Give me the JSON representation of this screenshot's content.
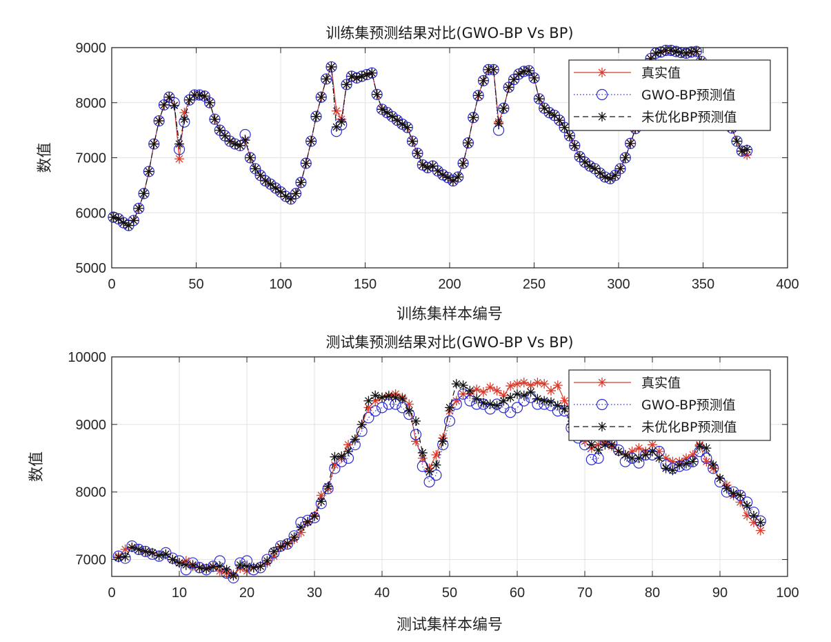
{
  "chart_data": [
    {
      "type": "line",
      "title": "训练集预测结果对比(GWO-BP Vs BP)",
      "xlabel": "训练集样本编号",
      "ylabel": "数值",
      "xlim": [
        0,
        400
      ],
      "ylim": [
        5000,
        9000
      ],
      "xticks": [
        0,
        50,
        100,
        150,
        200,
        250,
        300,
        350,
        400
      ],
      "yticks": [
        5000,
        6000,
        7000,
        8000,
        9000
      ],
      "grid": true,
      "legend_position": "top-right",
      "x": [
        1,
        4,
        7,
        10,
        13,
        16,
        19,
        22,
        25,
        28,
        31,
        34,
        37,
        40,
        43,
        46,
        49,
        52,
        55,
        58,
        61,
        64,
        67,
        70,
        73,
        76,
        79,
        82,
        85,
        88,
        91,
        94,
        97,
        100,
        103,
        106,
        109,
        112,
        115,
        118,
        121,
        124,
        127,
        130,
        133,
        136,
        139,
        142,
        145,
        148,
        151,
        154,
        157,
        160,
        163,
        166,
        169,
        172,
        175,
        178,
        181,
        184,
        187,
        190,
        193,
        196,
        199,
        202,
        205,
        208,
        211,
        214,
        217,
        220,
        223,
        226,
        229,
        232,
        235,
        238,
        241,
        244,
        247,
        250,
        253,
        256,
        259,
        262,
        265,
        268,
        271,
        274,
        277,
        280,
        283,
        286,
        289,
        292,
        295,
        298,
        301,
        304,
        307,
        310,
        313,
        316,
        319,
        322,
        325,
        328,
        331,
        334,
        337,
        340,
        343,
        346,
        349,
        352,
        355,
        358,
        361,
        364,
        367,
        370,
        373,
        376
      ],
      "series": [
        {
          "name": "真实值",
          "color": "#d93a2b",
          "line": "solid",
          "marker": "asterisk",
          "values": [
            5920,
            5890,
            5820,
            5770,
            5860,
            6080,
            6350,
            6750,
            7250,
            7670,
            7960,
            8100,
            7950,
            6980,
            7820,
            8050,
            8140,
            8140,
            8120,
            8000,
            7700,
            7500,
            7400,
            7300,
            7250,
            7220,
            7320,
            7000,
            6800,
            6680,
            6580,
            6520,
            6450,
            6380,
            6300,
            6250,
            6350,
            6550,
            6900,
            7300,
            7750,
            8100,
            8430,
            8650,
            7850,
            7700,
            8330,
            8480,
            8450,
            8480,
            8510,
            8540,
            8150,
            7880,
            7820,
            7750,
            7680,
            7610,
            7550,
            7300,
            7080,
            6870,
            6820,
            6850,
            6760,
            6690,
            6640,
            6580,
            6650,
            6900,
            7270,
            7730,
            8130,
            8400,
            8600,
            8600,
            7650,
            7900,
            8280,
            8420,
            8520,
            8570,
            8580,
            8450,
            8070,
            7900,
            7820,
            7770,
            7680,
            7550,
            7400,
            7220,
            7020,
            6920,
            6850,
            6800,
            6720,
            6650,
            6620,
            6680,
            6800,
            7000,
            7260,
            7530,
            7880,
            8400,
            8800,
            8900,
            8920,
            8950,
            8950,
            8930,
            8910,
            8900,
            8920,
            8930,
            8750,
            8580,
            8400,
            8160,
            7940,
            7760,
            7540,
            7300,
            7120,
            7050
          ]
        },
        {
          "name": "GWO-BP预测值",
          "color": "#2b2bd6",
          "line": "dotted",
          "marker": "circle",
          "values": [
            5920,
            5890,
            5820,
            5770,
            5860,
            6080,
            6350,
            6750,
            7250,
            7670,
            7960,
            8100,
            8000,
            7150,
            7650,
            8050,
            8140,
            8140,
            8120,
            8000,
            7700,
            7500,
            7400,
            7300,
            7250,
            7220,
            7420,
            7000,
            6800,
            6680,
            6580,
            6520,
            6450,
            6380,
            6300,
            6250,
            6350,
            6550,
            6900,
            7300,
            7750,
            8100,
            8430,
            8650,
            7480,
            7600,
            8330,
            8480,
            8450,
            8480,
            8510,
            8540,
            8150,
            7880,
            7820,
            7750,
            7680,
            7610,
            7550,
            7300,
            7080,
            6870,
            6820,
            6850,
            6760,
            6690,
            6640,
            6580,
            6650,
            6900,
            7270,
            7730,
            8130,
            8400,
            8600,
            8600,
            7500,
            7900,
            8280,
            8420,
            8520,
            8570,
            8580,
            8450,
            8070,
            7900,
            7820,
            7770,
            7680,
            7550,
            7400,
            7220,
            7020,
            6920,
            6850,
            6800,
            6720,
            6650,
            6620,
            6680,
            6800,
            7000,
            7260,
            7530,
            7880,
            8400,
            8800,
            8900,
            8920,
            8950,
            8950,
            8930,
            8910,
            8900,
            8920,
            8930,
            8750,
            8580,
            8400,
            8160,
            7940,
            7760,
            7540,
            7300,
            7120,
            7130
          ]
        },
        {
          "name": "未优化BP预测值",
          "color": "#111111",
          "line": "dashed",
          "marker": "asterisk",
          "values": [
            5920,
            5890,
            5820,
            5770,
            5860,
            6080,
            6350,
            6750,
            7250,
            7670,
            7960,
            8100,
            7950,
            7250,
            7700,
            8050,
            8140,
            8140,
            8120,
            8000,
            7700,
            7500,
            7400,
            7300,
            7250,
            7220,
            7320,
            7000,
            6800,
            6680,
            6580,
            6520,
            6450,
            6380,
            6300,
            6250,
            6350,
            6550,
            6900,
            7300,
            7750,
            8100,
            8430,
            8650,
            7560,
            7650,
            8330,
            8480,
            8450,
            8480,
            8510,
            8540,
            8150,
            7880,
            7820,
            7750,
            7680,
            7610,
            7550,
            7300,
            7080,
            6870,
            6820,
            6850,
            6760,
            6690,
            6640,
            6580,
            6650,
            6900,
            7270,
            7730,
            8130,
            8400,
            8600,
            8600,
            7620,
            7900,
            8280,
            8420,
            8520,
            8570,
            8580,
            8450,
            8070,
            7900,
            7820,
            7770,
            7680,
            7550,
            7400,
            7220,
            7020,
            6920,
            6850,
            6800,
            6720,
            6650,
            6620,
            6680,
            6800,
            7000,
            7260,
            7530,
            7880,
            8400,
            8800,
            8900,
            8920,
            8950,
            8950,
            8930,
            8910,
            8900,
            8920,
            8930,
            8750,
            8580,
            8400,
            8160,
            7940,
            7760,
            7540,
            7300,
            7120,
            7150
          ]
        }
      ]
    },
    {
      "type": "line",
      "title": "测试集预测结果对比(GWO-BP Vs BP)",
      "xlabel": "测试集样本编号",
      "ylabel": "数值",
      "xlim": [
        0,
        100
      ],
      "ylim": [
        6750,
        10000
      ],
      "xticks": [
        0,
        10,
        20,
        30,
        40,
        50,
        60,
        70,
        80,
        90,
        100
      ],
      "yticks": [
        7000,
        8000,
        9000,
        10000
      ],
      "grid": true,
      "legend_position": "top-right",
      "x": [
        1,
        2,
        3,
        4,
        5,
        6,
        7,
        8,
        9,
        10,
        11,
        12,
        13,
        14,
        15,
        16,
        17,
        18,
        19,
        20,
        21,
        22,
        23,
        24,
        25,
        26,
        27,
        28,
        29,
        30,
        31,
        32,
        33,
        34,
        35,
        36,
        37,
        38,
        39,
        40,
        41,
        42,
        43,
        44,
        45,
        46,
        47,
        48,
        49,
        50,
        51,
        52,
        53,
        54,
        55,
        56,
        57,
        58,
        59,
        60,
        61,
        62,
        63,
        64,
        65,
        66,
        67,
        68,
        69,
        70,
        71,
        72,
        73,
        74,
        75,
        76,
        77,
        78,
        79,
        80,
        81,
        82,
        83,
        84,
        85,
        86,
        87,
        88,
        89,
        90,
        91,
        92,
        93,
        94,
        95,
        96
      ],
      "series": [
        {
          "name": "真实值",
          "color": "#d93a2b",
          "line": "solid",
          "marker": "asterisk",
          "values": [
            7050,
            7150,
            7180,
            7150,
            7120,
            7100,
            7060,
            7080,
            7000,
            6950,
            6980,
            6900,
            6880,
            6870,
            6900,
            6830,
            6800,
            6780,
            6870,
            6830,
            6880,
            6900,
            6950,
            7050,
            7180,
            7230,
            7300,
            7400,
            7550,
            7650,
            7950,
            8050,
            8400,
            8500,
            8700,
            8780,
            9000,
            9250,
            9350,
            9400,
            9430,
            9450,
            9400,
            9300,
            8750,
            8500,
            8350,
            8550,
            8800,
            9200,
            9350,
            9450,
            9450,
            9520,
            9480,
            9550,
            9500,
            9430,
            9570,
            9600,
            9620,
            9580,
            9620,
            9600,
            9500,
            9580,
            9350,
            9200,
            9100,
            8750,
            8650,
            8700,
            8750,
            8680,
            8600,
            8550,
            8600,
            8650,
            8600,
            8700,
            8600,
            8500,
            8450,
            8450,
            8500,
            8550,
            8700,
            8450,
            8350,
            8200,
            8100,
            7950,
            7850,
            7650,
            7550,
            7430
          ]
        },
        {
          "name": "GWO-BP预测值",
          "color": "#2b2bd6",
          "line": "dotted",
          "marker": "circle",
          "values": [
            7050,
            7020,
            7200,
            7150,
            7120,
            7080,
            7050,
            7100,
            7020,
            6980,
            6850,
            6950,
            6880,
            6850,
            6900,
            6980,
            6800,
            6730,
            6950,
            6980,
            6850,
            6880,
            7000,
            7100,
            7200,
            7230,
            7350,
            7550,
            7580,
            7620,
            7830,
            8050,
            8350,
            8450,
            8500,
            8700,
            8900,
            9100,
            9200,
            9250,
            9300,
            9300,
            9250,
            9150,
            8850,
            8380,
            8150,
            8250,
            8700,
            9050,
            9300,
            9450,
            9350,
            9300,
            9300,
            9230,
            9300,
            9250,
            9180,
            9250,
            9350,
            9400,
            9300,
            9300,
            9280,
            9200,
            9200,
            8950,
            8800,
            8700,
            8480,
            8500,
            8750,
            8720,
            8620,
            8450,
            8500,
            8430,
            8550,
            8550,
            8600,
            8400,
            8350,
            8380,
            8400,
            8450,
            8600,
            8500,
            8350,
            8150,
            8000,
            8000,
            7950,
            7850,
            7700,
            7570
          ]
        },
        {
          "name": "未优化BP预测值",
          "color": "#111111",
          "line": "dashed",
          "marker": "asterisk",
          "values": [
            7030,
            7040,
            7180,
            7150,
            7120,
            7100,
            7060,
            7080,
            7000,
            6950,
            6920,
            6920,
            6880,
            6860,
            6890,
            6900,
            6850,
            6760,
            6920,
            6900,
            6880,
            6900,
            6980,
            7120,
            7190,
            7240,
            7330,
            7480,
            7560,
            7640,
            7860,
            8080,
            8520,
            8530,
            8600,
            8780,
            9000,
            9350,
            9430,
            9400,
            9420,
            9400,
            9380,
            9200,
            9050,
            8580,
            8300,
            8400,
            8750,
            9250,
            9600,
            9580,
            9500,
            9380,
            9320,
            9300,
            9280,
            9350,
            9400,
            9450,
            9430,
            9480,
            9380,
            9350,
            9330,
            9280,
            9230,
            9000,
            8900,
            8850,
            8700,
            8620,
            8700,
            8700,
            8600,
            8550,
            8500,
            8500,
            8550,
            8600,
            8500,
            8350,
            8320,
            8400,
            8420,
            8450,
            8680,
            8650,
            8400,
            8200,
            8050,
            7980,
            7950,
            7800,
            7650,
            7550
          ]
        }
      ]
    }
  ]
}
